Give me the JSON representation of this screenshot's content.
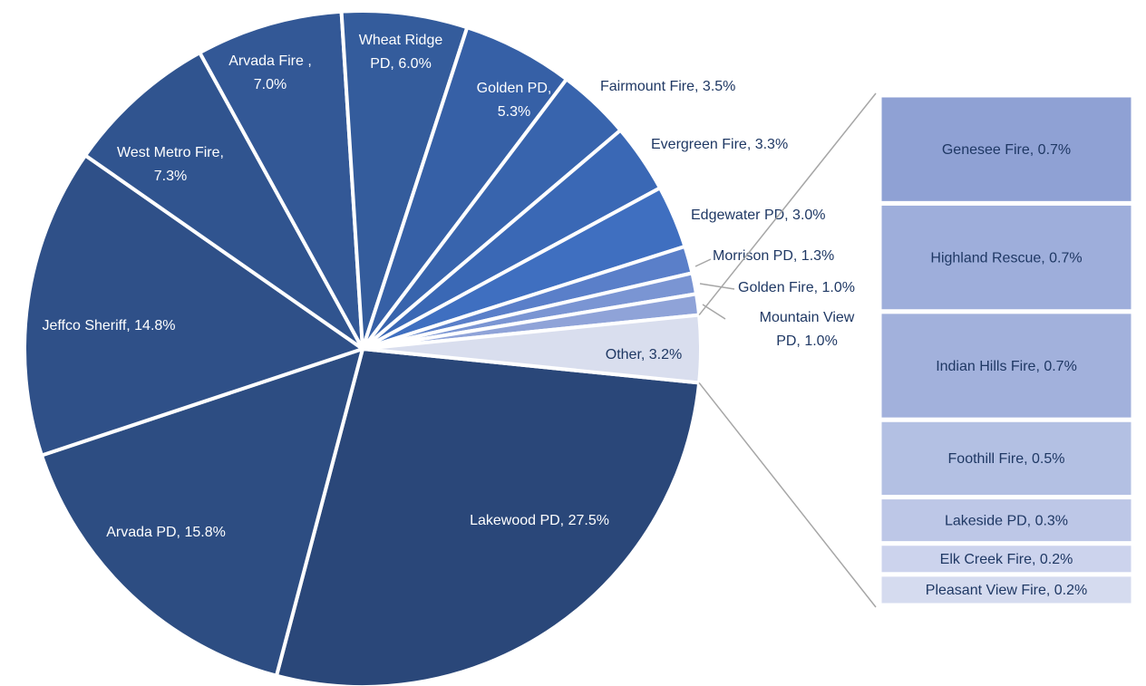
{
  "chart_data": {
    "type": "pie",
    "categories": [
      "Lakewood PD, 27.5%",
      "Arvada PD, 15.8%",
      "Jeffco Sheriff, 14.8%",
      "West Metro Fire, 7.3%",
      "Arvada Fire , 7.0%",
      "Wheat Ridge PD, 6.0%",
      "Golden PD, 5.3%",
      "Fairmount Fire, 3.5%",
      "Evergreen Fire, 3.3%",
      "Edgewater PD, 3.0%",
      "Morrison PD, 1.3%",
      "Golden Fire, 1.0%",
      "Mountain View PD, 1.0%",
      "Other, 3.2%"
    ],
    "values": [
      27.5,
      15.8,
      14.8,
      7.3,
      7.0,
      6.0,
      5.3,
      3.5,
      3.3,
      3.0,
      1.3,
      1.0,
      1.0,
      3.2
    ],
    "colors": [
      "#2a4779",
      "#2d4d82",
      "#2f5088",
      "#30548f",
      "#335896",
      "#345c9c",
      "#3660a6",
      "#3864ad",
      "#3a68b5",
      "#3f6fc0",
      "#5a7fc9",
      "#7a95d3",
      "#8fa3d8",
      "#d9deee"
    ],
    "breakdown": {
      "categories": [
        "Genesee Fire, 0.7%",
        "Highland Rescue, 0.7%",
        "Indian Hills Fire, 0.7%",
        "Foothill Fire, 0.5%",
        "Lakeside PD, 0.3%",
        "Elk Creek Fire, 0.2%",
        "Pleasant View Fire, 0.2%"
      ],
      "values": [
        0.7,
        0.7,
        0.7,
        0.5,
        0.3,
        0.2,
        0.2
      ],
      "colors": [
        "#8fa1d4",
        "#9eaedb",
        "#a2b1dc",
        "#b3c0e3",
        "#bdc7e7",
        "#ccd3ed",
        "#d5dbef"
      ]
    }
  }
}
